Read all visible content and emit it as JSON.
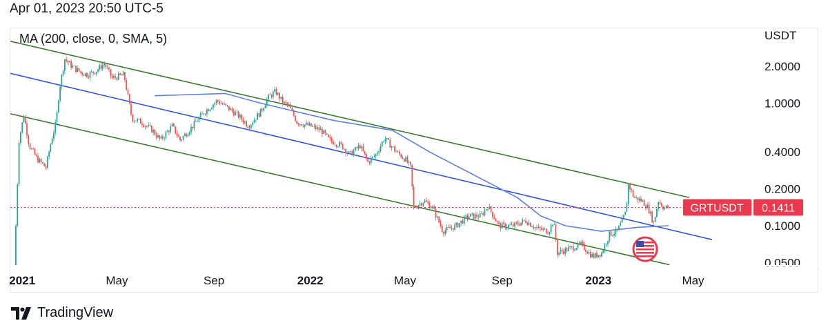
{
  "header": {
    "datetime": "Apr 01, 2023 20:50 UTC-5"
  },
  "footer": {
    "brand": "TradingView",
    "logo_icon": "tradingview-logo-icon"
  },
  "badge_icon": "us-flag-icon",
  "colors": {
    "channel": "#3a7a2e",
    "regression": "#3355d8",
    "ma": "#5b7fe0",
    "up": "#26a69a",
    "down": "#ef5350",
    "price_badge": "#e8394d"
  },
  "chart_data": {
    "type": "candlestick",
    "symbol": "GRTUSDT",
    "indicator_label": "MA (200, close, 0, SMA, 5)",
    "currency_label": "USDT",
    "y_scale": "log",
    "y_ticks": [
      "2.0000",
      "1.0000",
      "0.4000",
      "0.2000",
      "0.1000",
      "0.0500"
    ],
    "x_ticks": [
      "2021",
      "May",
      "Sep",
      "2022",
      "May",
      "Sep",
      "2023",
      "May"
    ],
    "last_price": "0.1411",
    "ma_line": [
      [
        "2021-06-18",
        1.15
      ],
      [
        "2021-09-15",
        1.2
      ],
      [
        "2021-10-30",
        1.0
      ],
      [
        "2021-12-15",
        0.85
      ],
      [
        "2022-02-01",
        0.72
      ],
      [
        "2022-04-15",
        0.6
      ],
      [
        "2022-06-01",
        0.4
      ],
      [
        "2022-08-01",
        0.25
      ],
      [
        "2022-09-20",
        0.17
      ],
      [
        "2022-10-20",
        0.12
      ],
      [
        "2022-11-20",
        0.1
      ],
      [
        "2023-01-05",
        0.09
      ],
      [
        "2023-02-20",
        0.097
      ],
      [
        "2023-03-31",
        0.1
      ]
    ],
    "channel_upper": [
      [
        "2020-12-17",
        3.2
      ],
      [
        "2023-04-26",
        0.17
      ]
    ],
    "channel_middle": [
      [
        "2020-12-17",
        1.75
      ],
      [
        "2023-05-25",
        0.077
      ]
    ],
    "channel_lower": [
      [
        "2020-12-17",
        0.82
      ],
      [
        "2023-04-01",
        0.048
      ]
    ],
    "price_path": [
      [
        "2020-12-22",
        0.045
      ],
      [
        "2020-12-28",
        0.5
      ],
      [
        "2021-01-03",
        0.8
      ],
      [
        "2021-01-10",
        0.45
      ],
      [
        "2021-01-20",
        0.35
      ],
      [
        "2021-01-31",
        0.3
      ],
      [
        "2021-02-07",
        0.5
      ],
      [
        "2021-02-13",
        0.7
      ],
      [
        "2021-02-17",
        1.3
      ],
      [
        "2021-02-24",
        2.3
      ],
      [
        "2021-03-05",
        2.0
      ],
      [
        "2021-03-15",
        1.8
      ],
      [
        "2021-03-25",
        1.7
      ],
      [
        "2021-04-05",
        1.85
      ],
      [
        "2021-04-15",
        2.1
      ],
      [
        "2021-04-25",
        1.6
      ],
      [
        "2021-05-10",
        1.7
      ],
      [
        "2021-05-20",
        0.75
      ],
      [
        "2021-06-01",
        0.7
      ],
      [
        "2021-06-15",
        0.6
      ],
      [
        "2021-06-25",
        0.5
      ],
      [
        "2021-07-10",
        0.65
      ],
      [
        "2021-07-20",
        0.5
      ],
      [
        "2021-08-05",
        0.65
      ],
      [
        "2021-08-20",
        0.85
      ],
      [
        "2021-09-05",
        1.05
      ],
      [
        "2021-09-20",
        0.9
      ],
      [
        "2021-10-01",
        0.8
      ],
      [
        "2021-10-15",
        0.65
      ],
      [
        "2021-10-30",
        0.85
      ],
      [
        "2021-11-08",
        1.1
      ],
      [
        "2021-11-18",
        1.25
      ],
      [
        "2021-11-28",
        1.0
      ],
      [
        "2021-12-05",
        0.95
      ],
      [
        "2021-12-15",
        0.7
      ],
      [
        "2022-01-01",
        0.65
      ],
      [
        "2022-01-15",
        0.6
      ],
      [
        "2022-01-25",
        0.5
      ],
      [
        "2022-02-10",
        0.45
      ],
      [
        "2022-02-20",
        0.38
      ],
      [
        "2022-03-05",
        0.45
      ],
      [
        "2022-03-15",
        0.33
      ],
      [
        "2022-03-25",
        0.38
      ],
      [
        "2022-04-05",
        0.52
      ],
      [
        "2022-04-20",
        0.4
      ],
      [
        "2022-05-01",
        0.35
      ],
      [
        "2022-05-08",
        0.3
      ],
      [
        "2022-05-12",
        0.14
      ],
      [
        "2022-05-25",
        0.16
      ],
      [
        "2022-06-05",
        0.14
      ],
      [
        "2022-06-18",
        0.09
      ],
      [
        "2022-07-05",
        0.1
      ],
      [
        "2022-07-20",
        0.12
      ],
      [
        "2022-08-05",
        0.12
      ],
      [
        "2022-08-14",
        0.145
      ],
      [
        "2022-08-28",
        0.1
      ],
      [
        "2022-09-15",
        0.1
      ],
      [
        "2022-10-01",
        0.11
      ],
      [
        "2022-10-15",
        0.095
      ],
      [
        "2022-10-30",
        0.09
      ],
      [
        "2022-11-05",
        0.11
      ],
      [
        "2022-11-10",
        0.06
      ],
      [
        "2022-11-25",
        0.065
      ],
      [
        "2022-12-10",
        0.07
      ],
      [
        "2022-12-25",
        0.056
      ],
      [
        "2023-01-05",
        0.06
      ],
      [
        "2023-01-15",
        0.085
      ],
      [
        "2023-01-25",
        0.09
      ],
      [
        "2023-02-05",
        0.13
      ],
      [
        "2023-02-08",
        0.22
      ],
      [
        "2023-02-15",
        0.17
      ],
      [
        "2023-02-25",
        0.16
      ],
      [
        "2023-03-05",
        0.14
      ],
      [
        "2023-03-12",
        0.105
      ],
      [
        "2023-03-18",
        0.16
      ],
      [
        "2023-03-25",
        0.14
      ],
      [
        "2023-03-31",
        0.1411
      ]
    ]
  }
}
